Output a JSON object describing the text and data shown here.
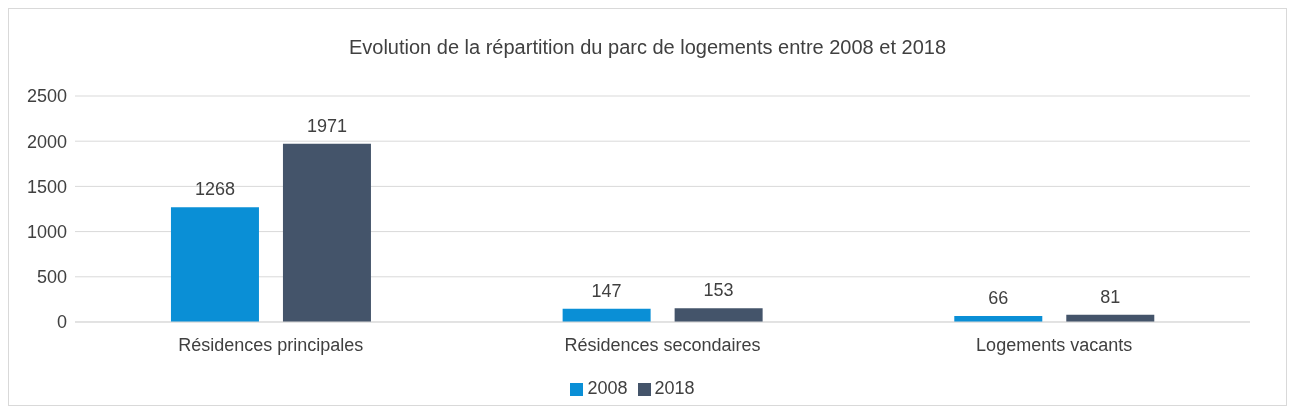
{
  "chart_data": {
    "type": "bar",
    "title": "Evolution de la répartition du parc de logements entre 2008 et 2018",
    "categories": [
      "Résidences principales",
      "Résidences secondaires",
      "Logements vacants"
    ],
    "series": [
      {
        "name": "2008",
        "color": "#0a8fd6",
        "values": [
          1268,
          147,
          66
        ]
      },
      {
        "name": "2018",
        "color": "#44546a",
        "values": [
          1971,
          153,
          81
        ]
      }
    ],
    "ylim": [
      0,
      2500
    ],
    "yticks": [
      0,
      500,
      1000,
      1500,
      2000,
      2500
    ],
    "grid": "y",
    "legend": "bottom",
    "data_labels": true
  }
}
